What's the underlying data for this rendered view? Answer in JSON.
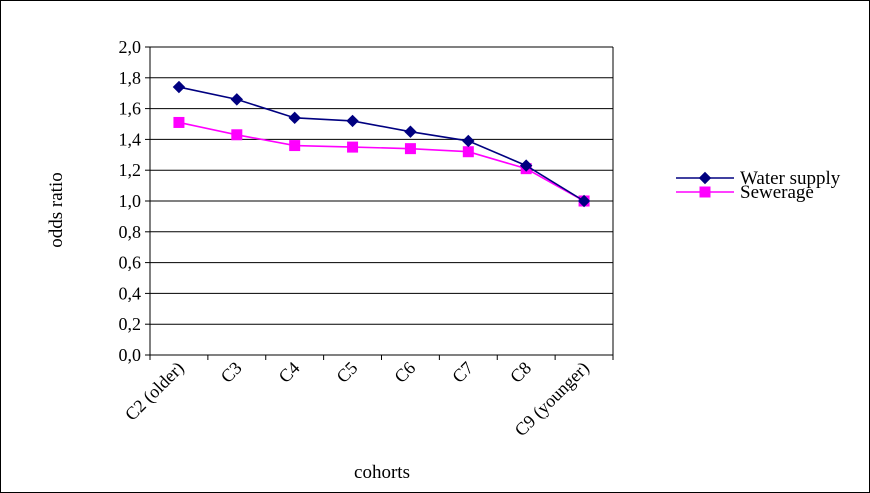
{
  "chart_data": {
    "type": "line",
    "title": "",
    "xlabel": "cohorts",
    "ylabel": "odds ratio",
    "ylim": [
      0,
      2
    ],
    "y_tick_step": 0.2,
    "y_tick_labels": [
      "0,0",
      "0,2",
      "0,4",
      "0,6",
      "0,8",
      "1,0",
      "1,2",
      "1,4",
      "1,6",
      "1,8",
      "2,0"
    ],
    "grid": true,
    "legend_position": "right",
    "categories": [
      "C2 (older)",
      "C3",
      "C4",
      "C5",
      "C6",
      "C7",
      "C8",
      "C9 (younger)"
    ],
    "series": [
      {
        "name": "Water supply",
        "color": "#000080",
        "marker": "diamond",
        "values": [
          1.74,
          1.66,
          1.54,
          1.52,
          1.45,
          1.39,
          1.23,
          1.0
        ]
      },
      {
        "name": "Sewerage",
        "color": "#ff00ff",
        "marker": "square",
        "values": [
          1.51,
          1.43,
          1.36,
          1.35,
          1.34,
          1.32,
          1.21,
          1.0
        ]
      }
    ]
  }
}
